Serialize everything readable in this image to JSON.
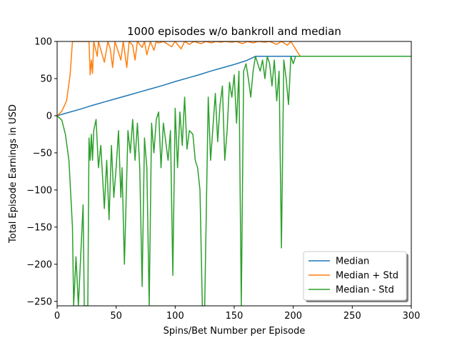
{
  "chart_data": {
    "type": "line",
    "title": "1000 episodes w/o bankroll and median",
    "xlabel": "Spins/Bet Number per Episode",
    "ylabel": "Total Episode Earnings in USD",
    "xlim": [
      0,
      300
    ],
    "ylim": [
      -256,
      100
    ],
    "xticks": [
      0,
      50,
      100,
      150,
      200,
      250,
      300
    ],
    "yticks": [
      -250,
      -200,
      -150,
      -100,
      -50,
      0,
      50,
      100
    ],
    "xtick_labels": [
      "0",
      "50",
      "100",
      "150",
      "200",
      "250",
      "300"
    ],
    "ytick_labels": [
      "−250",
      "−200",
      "−150",
      "−100",
      "−50",
      "0",
      "50",
      "100"
    ],
    "grid": false,
    "legend_position": "lower-right",
    "series": [
      {
        "name": "Median",
        "color": "#1f77b4",
        "points": [
          [
            0,
            0
          ],
          [
            10,
            4.5
          ],
          [
            20,
            9
          ],
          [
            30,
            14
          ],
          [
            40,
            18.5
          ],
          [
            50,
            23
          ],
          [
            60,
            27.5
          ],
          [
            70,
            32
          ],
          [
            80,
            36.5
          ],
          [
            90,
            41
          ],
          [
            100,
            46
          ],
          [
            110,
            50.5
          ],
          [
            120,
            55
          ],
          [
            130,
            60
          ],
          [
            140,
            64.5
          ],
          [
            150,
            69
          ],
          [
            160,
            74
          ],
          [
            168,
            80
          ],
          [
            300,
            80
          ]
        ]
      },
      {
        "name": "Median + Std",
        "color": "#ff7f0e",
        "points": [
          [
            0,
            0
          ],
          [
            4,
            6
          ],
          [
            8,
            20
          ],
          [
            11,
            55
          ],
          [
            13,
            100
          ],
          [
            27,
            100
          ],
          [
            28,
            55
          ],
          [
            29,
            75
          ],
          [
            30,
            57
          ],
          [
            31,
            100
          ],
          [
            34,
            80
          ],
          [
            35,
            100
          ],
          [
            40,
            72
          ],
          [
            43,
            100
          ],
          [
            45,
            90
          ],
          [
            47,
            65
          ],
          [
            49,
            100
          ],
          [
            54,
            75
          ],
          [
            56,
            100
          ],
          [
            59,
            65
          ],
          [
            61,
            100
          ],
          [
            64,
            95
          ],
          [
            66,
            75
          ],
          [
            68,
            100
          ],
          [
            72,
            92
          ],
          [
            74,
            100
          ],
          [
            76,
            82
          ],
          [
            79,
            100
          ],
          [
            82,
            88
          ],
          [
            84,
            100
          ],
          [
            86,
            98
          ],
          [
            90,
            100
          ],
          [
            97,
            93
          ],
          [
            100,
            100
          ],
          [
            105,
            90
          ],
          [
            108,
            100
          ],
          [
            112,
            96
          ],
          [
            116,
            100
          ],
          [
            122,
            97
          ],
          [
            126,
            100
          ],
          [
            131,
            98
          ],
          [
            134,
            100
          ],
          [
            139,
            99
          ],
          [
            142,
            100
          ],
          [
            148,
            99
          ],
          [
            152,
            100
          ],
          [
            157,
            97
          ],
          [
            161,
            100
          ],
          [
            166,
            98
          ],
          [
            170,
            100
          ],
          [
            176,
            99
          ],
          [
            180,
            100
          ],
          [
            186,
            96
          ],
          [
            190,
            100
          ],
          [
            195,
            95
          ],
          [
            198,
            100
          ],
          [
            203,
            87
          ],
          [
            206,
            80
          ],
          [
            300,
            80
          ]
        ]
      },
      {
        "name": "Median - Std",
        "color": "#2ca02c",
        "points": [
          [
            0,
            0
          ],
          [
            4,
            -6
          ],
          [
            7,
            -25
          ],
          [
            10,
            -60
          ],
          [
            13,
            -150
          ],
          [
            14,
            -256
          ],
          [
            16,
            -190
          ],
          [
            18,
            -256
          ],
          [
            22,
            -120
          ],
          [
            23,
            -256
          ],
          [
            26,
            -256
          ],
          [
            27,
            -30
          ],
          [
            28,
            -60
          ],
          [
            29,
            -25
          ],
          [
            30,
            -60
          ],
          [
            31,
            -20
          ],
          [
            33,
            -5
          ],
          [
            35,
            -70
          ],
          [
            37,
            -40
          ],
          [
            40,
            -125
          ],
          [
            42,
            -60
          ],
          [
            44,
            -140
          ],
          [
            46,
            -40
          ],
          [
            48,
            -110
          ],
          [
            50,
            -70
          ],
          [
            52,
            -20
          ],
          [
            54,
            -110
          ],
          [
            55,
            -70
          ],
          [
            57,
            -200
          ],
          [
            60,
            -20
          ],
          [
            62,
            -50
          ],
          [
            64,
            -5
          ],
          [
            66,
            -60
          ],
          [
            68,
            -10
          ],
          [
            70,
            -70
          ],
          [
            72,
            -230
          ],
          [
            74,
            -30
          ],
          [
            76,
            -70
          ],
          [
            78,
            -256
          ],
          [
            80,
            -10
          ],
          [
            82,
            -50
          ],
          [
            84,
            -5
          ],
          [
            86,
            5
          ],
          [
            88,
            -70
          ],
          [
            90,
            -10
          ],
          [
            92,
            -35
          ],
          [
            94,
            -60
          ],
          [
            96,
            -20
          ],
          [
            98,
            -215
          ],
          [
            100,
            10
          ],
          [
            102,
            -70
          ],
          [
            104,
            5
          ],
          [
            106,
            -40
          ],
          [
            108,
            25
          ],
          [
            110,
            -45
          ],
          [
            112,
            -20
          ],
          [
            115,
            -25
          ],
          [
            117,
            -60
          ],
          [
            119,
            -70
          ],
          [
            121,
            -100
          ],
          [
            123,
            -256
          ],
          [
            125,
            -256
          ],
          [
            128,
            25
          ],
          [
            130,
            -60
          ],
          [
            132,
            -15
          ],
          [
            134,
            30
          ],
          [
            136,
            -35
          ],
          [
            138,
            15
          ],
          [
            140,
            40
          ],
          [
            142,
            -60
          ],
          [
            144,
            -20
          ],
          [
            146,
            45
          ],
          [
            148,
            25
          ],
          [
            150,
            55
          ],
          [
            152,
            -10
          ],
          [
            154,
            60
          ],
          [
            156,
            -256
          ],
          [
            158,
            60
          ],
          [
            160,
            70
          ],
          [
            162,
            50
          ],
          [
            164,
            25
          ],
          [
            166,
            60
          ],
          [
            168,
            80
          ],
          [
            170,
            70
          ],
          [
            172,
            60
          ],
          [
            174,
            75
          ],
          [
            176,
            50
          ],
          [
            178,
            80
          ],
          [
            180,
            70
          ],
          [
            182,
            40
          ],
          [
            184,
            75
          ],
          [
            186,
            20
          ],
          [
            188,
            60
          ],
          [
            190,
            -178
          ],
          [
            192,
            75
          ],
          [
            194,
            50
          ],
          [
            196,
            15
          ],
          [
            198,
            80
          ],
          [
            200,
            70
          ],
          [
            202,
            80
          ],
          [
            206,
            80
          ],
          [
            300,
            80
          ]
        ]
      }
    ]
  }
}
